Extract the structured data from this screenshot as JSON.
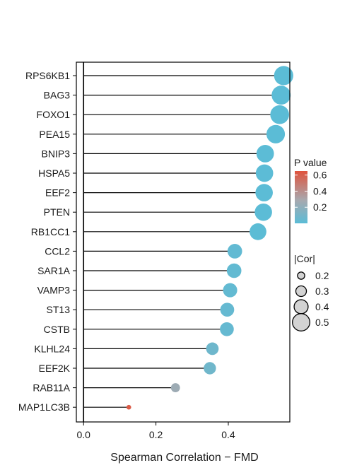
{
  "chart_data": {
    "type": "lollipop",
    "xlabel": "Spearman Correlation − FMD",
    "ylabel": "",
    "xlim": [
      -0.02,
      0.57
    ],
    "x_ticks": [
      0.0,
      0.2,
      0.4
    ],
    "x_tick_labels": [
      "0.0",
      "0.2",
      "0.4"
    ],
    "grid": false,
    "legend_position": "right",
    "categories": [
      "RPS6KB1",
      "BAG3",
      "FOXO1",
      "PEA15",
      "BNIP3",
      "HSPA5",
      "EEF2",
      "PTEN",
      "RB1CC1",
      "CCL2",
      "SAR1A",
      "VAMP3",
      "ST13",
      "CSTB",
      "KLHL24",
      "EEF2K",
      "RAB11A",
      "MAP1LC3B"
    ],
    "correlation": [
      0.553,
      0.546,
      0.542,
      0.531,
      0.502,
      0.5,
      0.499,
      0.497,
      0.482,
      0.418,
      0.416,
      0.405,
      0.397,
      0.396,
      0.356,
      0.349,
      0.254,
      0.125
    ],
    "p_value": [
      0.0,
      0.0,
      0.0,
      0.001,
      0.002,
      0.002,
      0.002,
      0.002,
      0.004,
      0.025,
      0.026,
      0.032,
      0.037,
      0.038,
      0.072,
      0.078,
      0.25,
      0.62
    ],
    "color_legend": {
      "title": "P value",
      "ticks": [
        0.6,
        0.4,
        0.2
      ],
      "tick_labels": [
        "0.6",
        "0.4",
        "0.2"
      ],
      "range": [
        0.0,
        0.65
      ],
      "color_low": "#5bbcd6",
      "color_mid": "#a8a8ae",
      "color_high": "#e0533d"
    },
    "size_legend": {
      "title": "|Cor|",
      "values": [
        0.2,
        0.3,
        0.4,
        0.5
      ],
      "labels": [
        "0.2",
        "0.3",
        "0.4",
        "0.5"
      ]
    }
  }
}
